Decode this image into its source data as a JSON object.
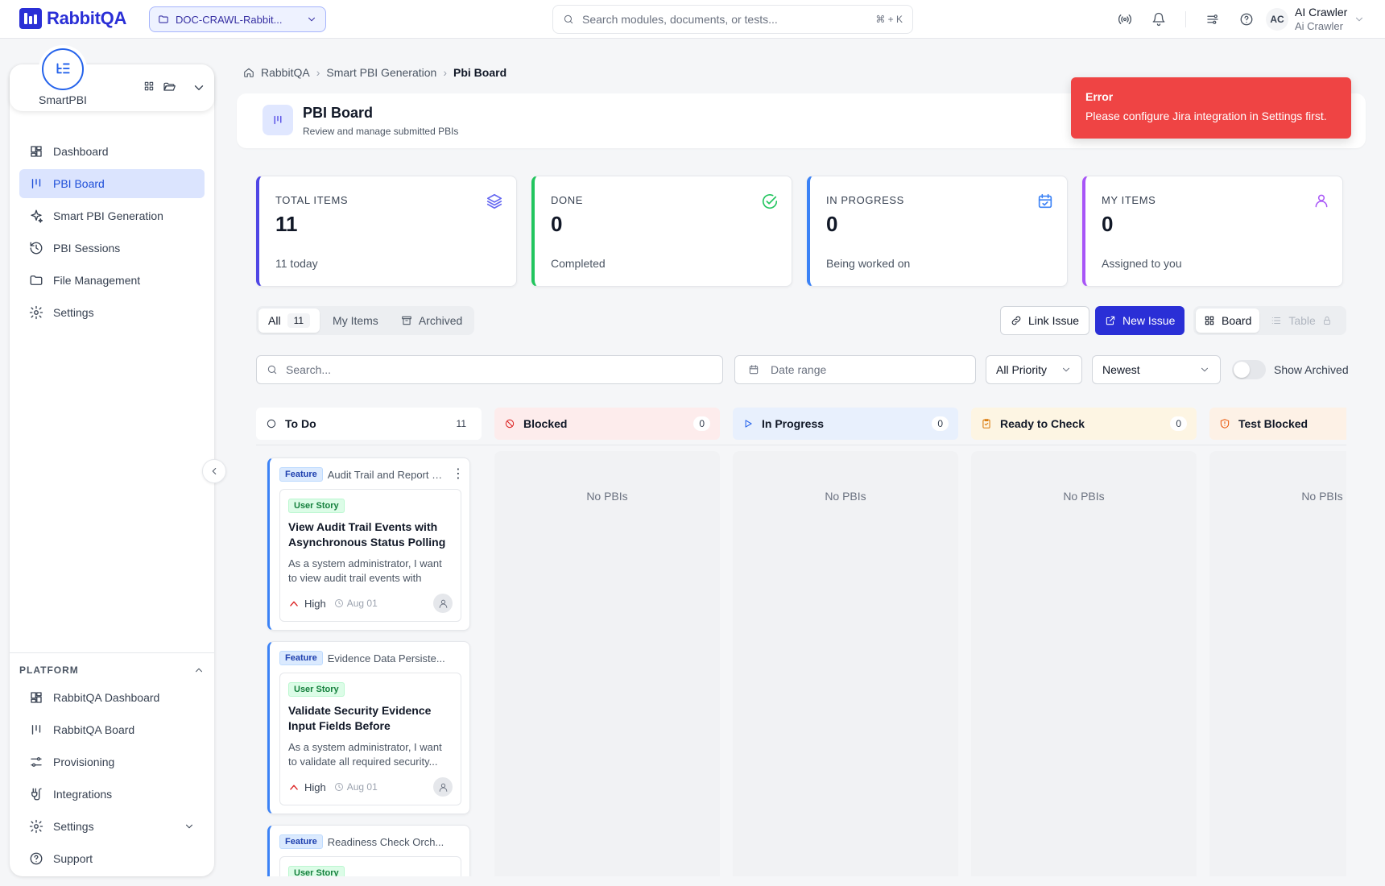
{
  "app": {
    "name": "RabbitQA",
    "project": "DOC-CRAWL-Rabbit...",
    "search_placeholder": "Search modules, documents, or tests...",
    "shortcut": "⌘ + K"
  },
  "user": {
    "initials": "AC",
    "name": "AI Crawler",
    "subtitle": "Ai Crawler"
  },
  "sidebar": {
    "brand": "SmartPBI",
    "items": [
      {
        "label": "Dashboard",
        "icon": "dashboard-icon"
      },
      {
        "label": "PBI Board",
        "icon": "board-icon",
        "active": true
      },
      {
        "label": "Smart PBI Generation",
        "icon": "sparkles-icon"
      },
      {
        "label": "PBI Sessions",
        "icon": "history-icon"
      },
      {
        "label": "File Management",
        "icon": "folder-icon"
      },
      {
        "label": "Settings",
        "icon": "gear-icon"
      }
    ],
    "platform_title": "PLATFORM",
    "platform_items": [
      {
        "label": "RabbitQA Dashboard",
        "icon": "dashboard-icon"
      },
      {
        "label": "RabbitQA Board",
        "icon": "board-icon"
      },
      {
        "label": "Provisioning",
        "icon": "sliders-icon"
      },
      {
        "label": "Integrations",
        "icon": "plug-icon"
      },
      {
        "label": "Settings",
        "icon": "gear-icon"
      },
      {
        "label": "Support",
        "icon": "help-icon"
      }
    ]
  },
  "breadcrumb": [
    "RabbitQA",
    "Smart PBI Generation",
    "Pbi Board"
  ],
  "header": {
    "title": "PBI Board",
    "subtitle": "Review and manage submitted PBIs"
  },
  "toast": {
    "title": "Error",
    "message": "Please configure Jira integration in Settings first.",
    "color": "#ef4444"
  },
  "stats": [
    {
      "label": "TOTAL ITEMS",
      "value": "11",
      "sub": "11 today",
      "color": "#4f46e5"
    },
    {
      "label": "DONE",
      "value": "0",
      "sub": "Completed",
      "color": "#22c55e"
    },
    {
      "label": "IN PROGRESS",
      "value": "0",
      "sub": "Being worked on",
      "color": "#3b82f6"
    },
    {
      "label": "MY ITEMS",
      "value": "0",
      "sub": "Assigned to you",
      "color": "#a855f7"
    }
  ],
  "filters": {
    "tabs": [
      {
        "label": "All",
        "count": "11"
      },
      {
        "label": "My Items"
      },
      {
        "label": "Archived"
      }
    ],
    "link_issue": "Link Issue",
    "new_issue": "New Issue",
    "view_board": "Board",
    "view_table": "Table",
    "search_placeholder": "Search...",
    "date_placeholder": "Date range",
    "priority": "All Priority",
    "sort": "Newest",
    "show_archived": "Show Archived"
  },
  "columns": [
    {
      "title": "To Do",
      "count": "11",
      "bg": "#ffffff",
      "accent": "#374151"
    },
    {
      "title": "Blocked",
      "count": "0",
      "bg": "#fdecec",
      "accent": "#dc2626",
      "empty": "No PBIs"
    },
    {
      "title": "In Progress",
      "count": "0",
      "bg": "#e8f0fd",
      "accent": "#2563eb",
      "empty": "No PBIs"
    },
    {
      "title": "Ready to Check",
      "count": "0",
      "bg": "#fdf5e3",
      "accent": "#d97706",
      "empty": "No PBIs"
    },
    {
      "title": "Test Blocked",
      "count": "",
      "bg": "#fdf1e6",
      "accent": "#ea580c",
      "empty": "No PBIs"
    }
  ],
  "cards": [
    {
      "feature_badge": "Feature",
      "feature_title": "Audit Trail and Report E...",
      "story_badge": "User Story",
      "title": "View Audit Trail Events with Asynchronous Status Polling in...",
      "desc": "As a system administrator, I want to view audit trail events with async...",
      "priority": "High",
      "due": "Aug 01"
    },
    {
      "feature_badge": "Feature",
      "feature_title": "Evidence Data Persiste...",
      "story_badge": "User Story",
      "title": "Validate Security Evidence Input Fields Before Persistence",
      "desc": "As a system administrator, I want to validate all required security...",
      "priority": "High",
      "due": "Aug 01"
    },
    {
      "feature_badge": "Feature",
      "feature_title": "Readiness Check Orch...",
      "story_badge": "User Story"
    }
  ]
}
